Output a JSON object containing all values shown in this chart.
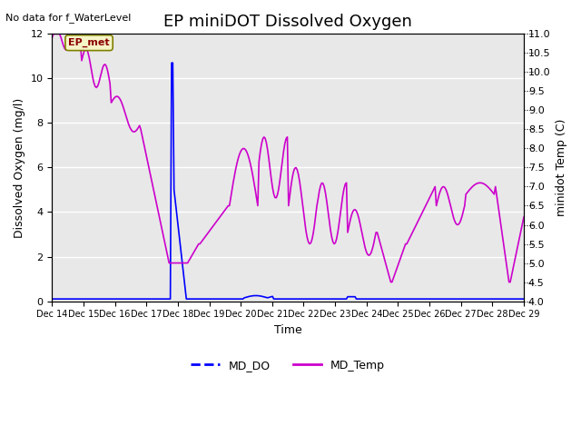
{
  "title": "EP miniDOT Dissolved Oxygen",
  "top_left_text": "No data for f_WaterLevel",
  "xlabel": "Time",
  "ylabel_left": "Dissolved Oxygen (mg/l)",
  "ylabel_right": "minidot Temp (C)",
  "ylim_left": [
    0,
    12
  ],
  "ylim_right": [
    4.0,
    11.0
  ],
  "yticks_left": [
    0,
    2,
    4,
    6,
    8,
    10,
    12
  ],
  "yticks_right": [
    4.0,
    4.5,
    5.0,
    5.5,
    6.0,
    6.5,
    7.0,
    7.5,
    8.0,
    8.5,
    9.0,
    9.5,
    10.0,
    10.5,
    11.0
  ],
  "xtick_labels": [
    "Dec 14",
    "Dec 15",
    "Dec 16",
    "Dec 17",
    "Dec 18",
    "Dec 19",
    "Dec 20",
    "Dec 21",
    "Dec 22",
    "Dec 23",
    "Dec 24",
    "Dec 25",
    "Dec 26",
    "Dec 27",
    "Dec 28",
    "Dec 29"
  ],
  "annotation_text": "EP_met",
  "legend_labels": [
    "MD_DO",
    "MD_Temp"
  ],
  "md_do_color": "blue",
  "md_temp_color": "#cc00cc",
  "background_color": "#e8e8e8",
  "grid_color": "white",
  "title_fontsize": 13
}
